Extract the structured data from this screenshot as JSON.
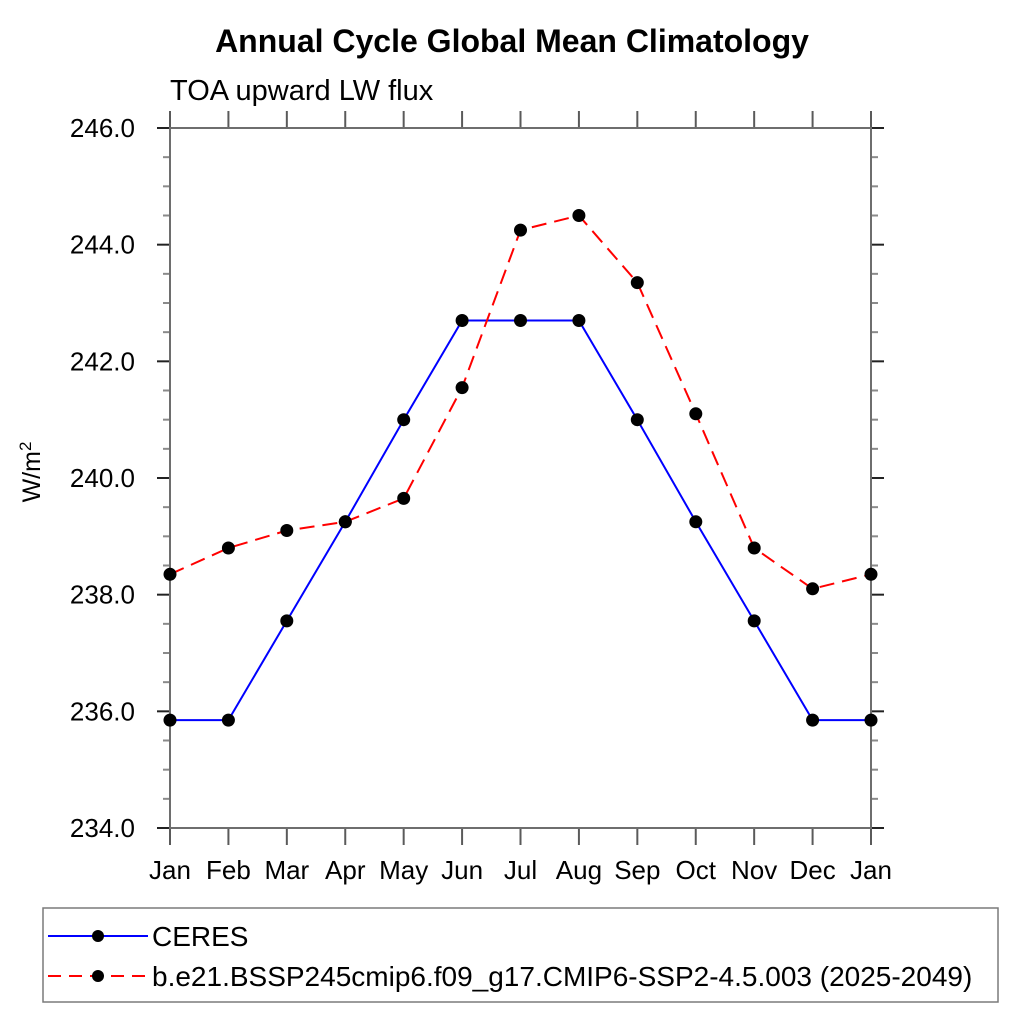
{
  "chart_data": {
    "type": "line",
    "title": "Annual Cycle Global Mean Climatology",
    "subtitle": "TOA upward LW flux",
    "ylabel": {
      "main": "W/m",
      "sup": "2"
    },
    "x_categories": [
      "Jan",
      "Feb",
      "Mar",
      "Apr",
      "May",
      "Jun",
      "Jul",
      "Aug",
      "Sep",
      "Oct",
      "Nov",
      "Dec",
      "Jan"
    ],
    "ylim": [
      234.0,
      246.0
    ],
    "y_major_step": 2.0,
    "y_minor_step": 0.5,
    "y_tick_decimals": 1,
    "grid": false,
    "legend_position": "bottom-left-box",
    "series": [
      {
        "name": "CERES",
        "color": "#0000ff",
        "line_style": "solid",
        "marker": "black-dot",
        "values": [
          235.85,
          235.85,
          237.55,
          239.25,
          241.0,
          242.7,
          242.7,
          242.7,
          241.0,
          239.25,
          237.55,
          235.85,
          235.85
        ]
      },
      {
        "name": "b.e21.BSSP245cmip6.f09_g17.CMIP6-SSP2-4.5.003 (2025-2049)",
        "color": "#ff0000",
        "line_style": "dashed",
        "marker": "black-dot",
        "values": [
          238.35,
          238.8,
          239.1,
          239.25,
          239.65,
          241.55,
          244.25,
          244.5,
          243.35,
          241.1,
          238.8,
          238.1,
          238.35
        ]
      }
    ]
  },
  "colors": {
    "background": "#ffffff",
    "axis_frame": "#6e6e6e",
    "major_tick": "#222222",
    "minor_tick": "#8a8a8a",
    "month_tick": "#5a5a5a",
    "marker": "#000000",
    "legend_border": "#7a7a7a",
    "text": "#000000"
  }
}
